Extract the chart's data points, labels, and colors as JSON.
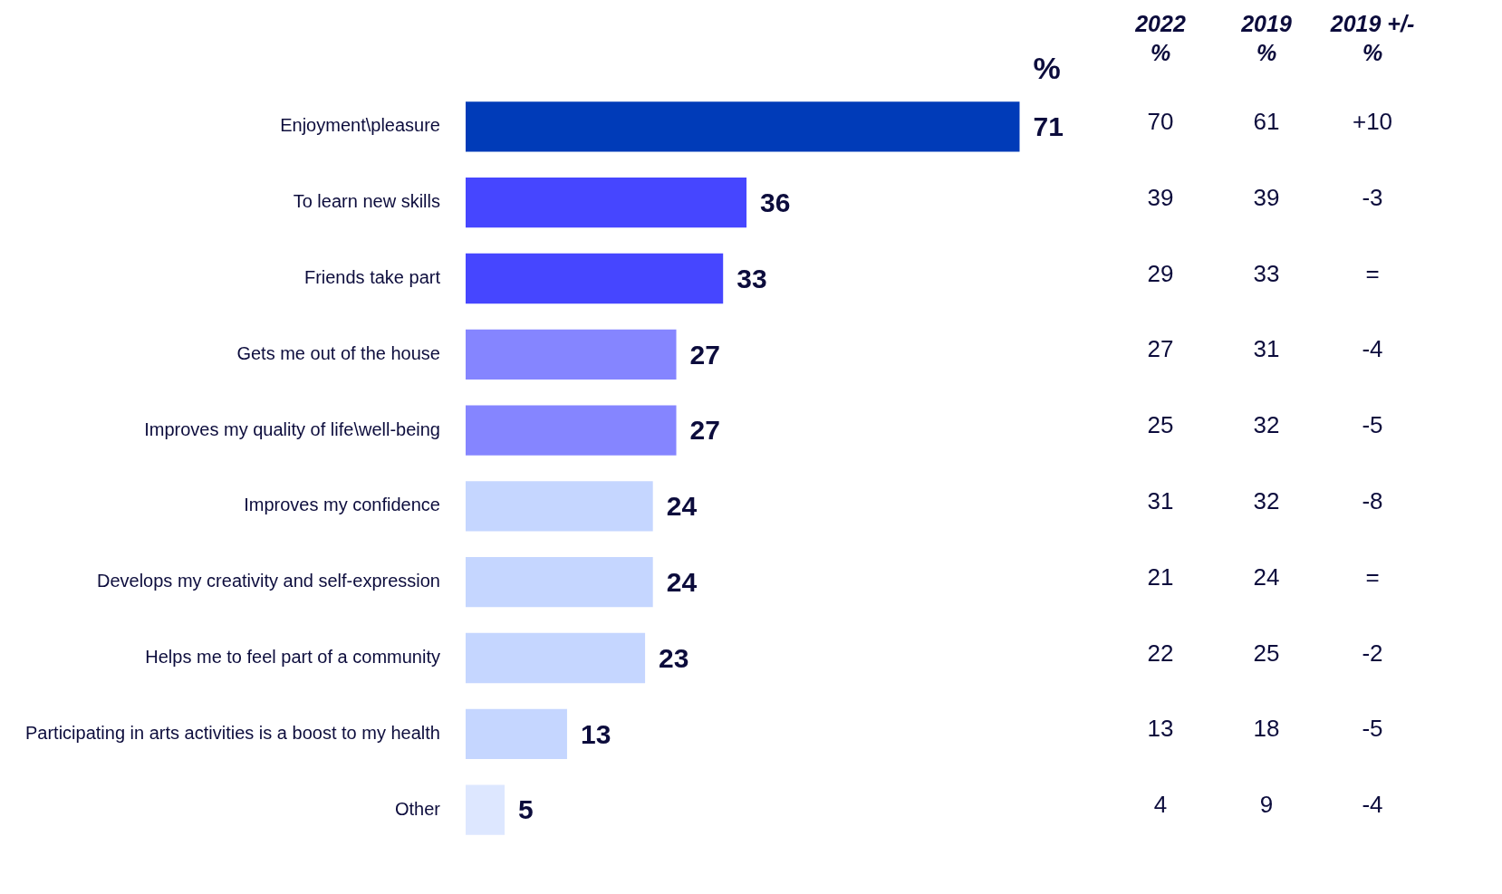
{
  "chart_data": {
    "type": "bar",
    "orientation": "horizontal",
    "data_labels": true,
    "legend": false,
    "tick_labels": "y",
    "categories": [
      "Enjoyment\\pleasure",
      "To learn new skills",
      "Friends take part",
      "Gets me out of the house",
      "Improves my quality of life\\well-being",
      "Improves my confidence",
      "Develops my creativity and self-expression",
      "Helps me to feel part of a community",
      "Participating in arts activities is a boost to my health",
      "Other"
    ],
    "values": [
      71,
      36,
      33,
      27,
      27,
      24,
      24,
      23,
      13,
      5
    ],
    "colors": [
      "#003bb8",
      "#4646ff",
      "#4646ff",
      "#8585ff",
      "#8585ff",
      "#c5d6ff",
      "#c5d6ff",
      "#c5d6ff",
      "#c5d6ff",
      "#dde7ff"
    ],
    "annotations": [
      "%",
      "2022 %",
      "2019 %",
      "2019 +/- %",
      "70",
      "61",
      "+10",
      "39",
      "39",
      "-3",
      "29",
      "33",
      "=",
      "27",
      "31",
      "-4",
      "25",
      "32",
      "-5",
      "31",
      "32",
      "-8",
      "21",
      "24",
      "=",
      "22",
      "25",
      "-2",
      "13",
      "18",
      "-5",
      "4",
      "9",
      "-4"
    ]
  }
}
